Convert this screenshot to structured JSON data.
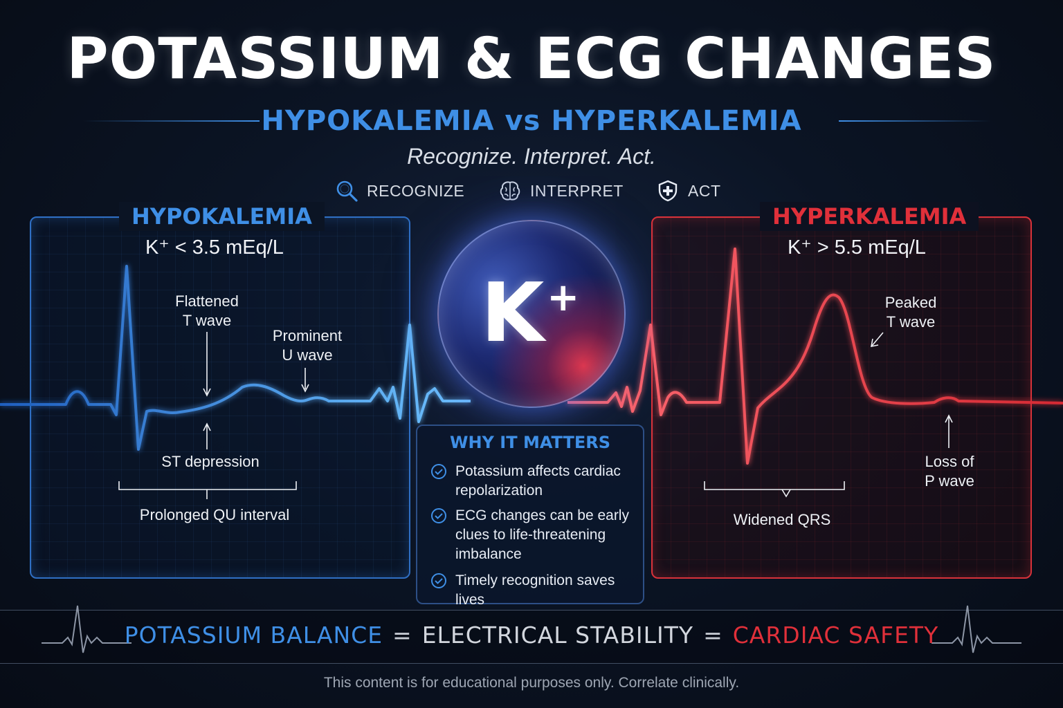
{
  "title": "POTASSIUM & ECG CHANGES",
  "subtitle": {
    "left": "HYPOKALEMIA",
    "vs": "vs",
    "right": "HYPERKALEMIA"
  },
  "tagline": "Recognize. Interpret. Act.",
  "steps": [
    {
      "label": "RECOGNIZE",
      "icon": "magnifier-icon"
    },
    {
      "label": "INTERPRET",
      "icon": "brain-icon"
    },
    {
      "label": "ACT",
      "icon": "shield-cross-icon"
    }
  ],
  "hypokalemia": {
    "label": "HYPOKALEMIA",
    "level": "K⁺ < 3.5 mEq/L",
    "annotations": {
      "flattened_t": [
        "Flattened",
        "T wave"
      ],
      "prominent_u": [
        "Prominent",
        "U wave"
      ],
      "st_depression": "ST depression",
      "prolonged_qu": "Prolonged QU interval"
    },
    "color": "#3f8fe6"
  },
  "hyperkalemia": {
    "label": "HYPERKALEMIA",
    "level": "K⁺ > 5.5 mEq/L",
    "annotations": {
      "peaked_t": [
        "Peaked",
        "T wave"
      ],
      "loss_p": [
        "Loss of",
        "P wave"
      ],
      "widened_qrs": "Widened QRS"
    },
    "color": "#e0303a"
  },
  "center": {
    "symbol": "K",
    "charge": "+"
  },
  "why_it_matters": {
    "title": "WHY IT MATTERS",
    "items": [
      [
        "Potassium affects cardiac",
        "repolarization"
      ],
      [
        "ECG changes can be early",
        "clues to life-threatening",
        "imbalance"
      ],
      [
        "Timely recognition saves lives"
      ]
    ]
  },
  "balance": {
    "part1": "POTASSIUM BALANCE",
    "eq1": "=",
    "part2": "ELECTRICAL STABILITY",
    "eq2": "=",
    "part3": "CARDIAC SAFETY"
  },
  "disclaimer": "This content is for educational purposes only. Correlate clinically."
}
